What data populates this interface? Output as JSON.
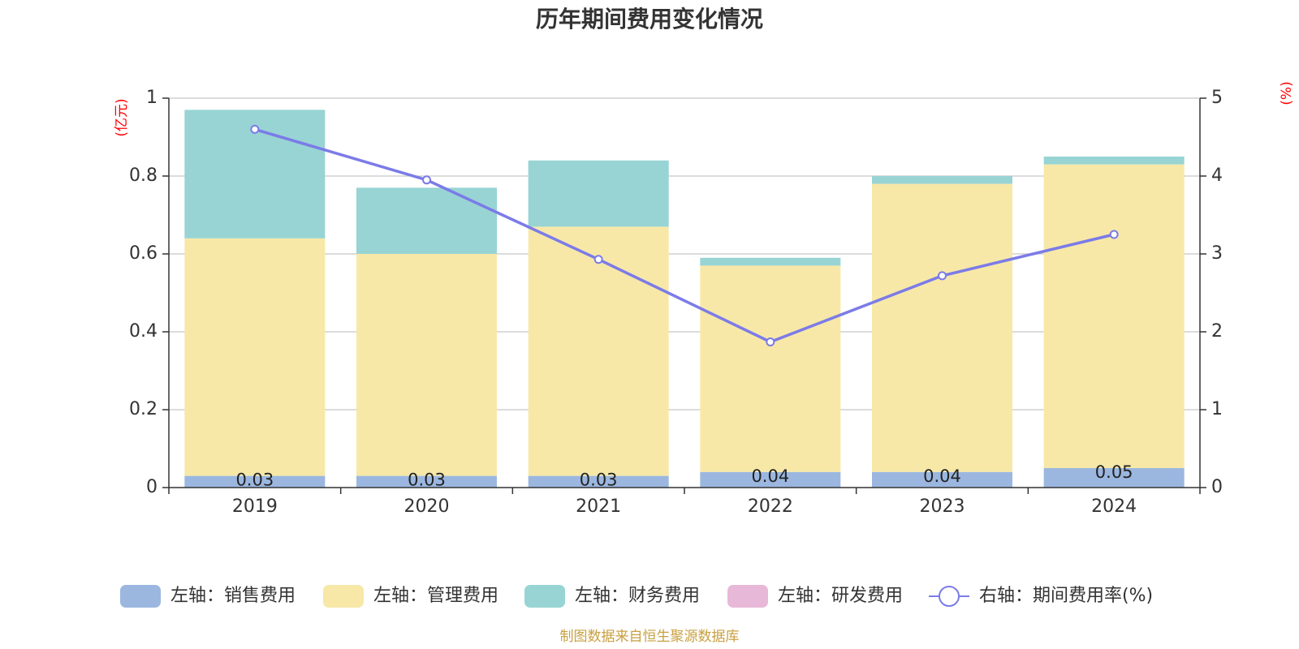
{
  "chart_data": {
    "type": "bar",
    "title": "历年期间费用变化情况",
    "left_axis_unit": "(亿元)",
    "right_axis_unit": "(%)",
    "categories": [
      "2019",
      "2020",
      "2021",
      "2022",
      "2023",
      "2024"
    ],
    "series": [
      {
        "name": "左轴：销售费用",
        "axis": "left",
        "type": "bar",
        "color": "#9bb7e0",
        "values": [
          0.03,
          0.03,
          0.03,
          0.04,
          0.04,
          0.05
        ],
        "labels": [
          "0.03",
          "0.03",
          "0.03",
          "0.04",
          "0.04",
          "0.05"
        ]
      },
      {
        "name": "左轴：管理费用",
        "axis": "left",
        "type": "bar",
        "color": "#f7e8a8",
        "values": [
          0.61,
          0.57,
          0.64,
          0.53,
          0.74,
          0.78
        ]
      },
      {
        "name": "左轴：财务费用",
        "axis": "left",
        "type": "bar",
        "color": "#98d4d4",
        "values": [
          0.33,
          0.17,
          0.17,
          0.02,
          0.02,
          0.02
        ]
      },
      {
        "name": "左轴：研发费用",
        "axis": "left",
        "type": "bar",
        "color": "#e8b8d8",
        "values": [
          0,
          0,
          0,
          0,
          0,
          0
        ]
      },
      {
        "name": "右轴：期间费用率(%)",
        "axis": "right",
        "type": "line",
        "color": "#7b7be8",
        "values": [
          4.6,
          3.95,
          2.93,
          1.87,
          2.72,
          3.25
        ]
      }
    ],
    "left_axis": {
      "min": 0,
      "max": 1,
      "ticks": [
        "0",
        "0.2",
        "0.4",
        "0.6",
        "0.8",
        "1"
      ]
    },
    "right_axis": {
      "min": 0,
      "max": 5,
      "ticks": [
        "0",
        "1",
        "2",
        "3",
        "4",
        "5"
      ]
    },
    "grid": true,
    "legend_position": "bottom"
  },
  "source_note": "制图数据来自恒生聚源数据库"
}
